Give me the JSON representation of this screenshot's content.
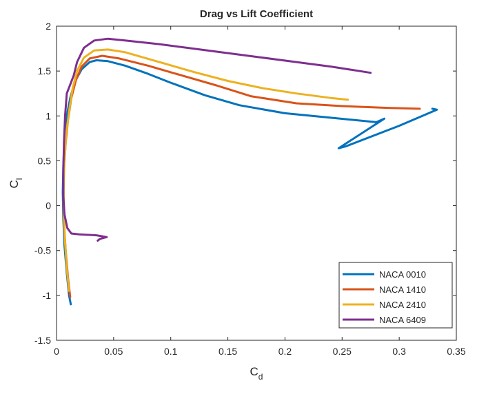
{
  "chart_data": {
    "type": "line",
    "title": "Drag vs Lift Coefficient",
    "xlabel": {
      "main": "C",
      "sub": "d"
    },
    "ylabel": {
      "main": "C",
      "sub": "l"
    },
    "xlim": [
      0,
      0.35
    ],
    "ylim": [
      -1.5,
      2
    ],
    "xticks": [
      0,
      0.05,
      0.1,
      0.15,
      0.2,
      0.25,
      0.3,
      0.35
    ],
    "xtick_labels": [
      "0",
      "0.05",
      "0.1",
      "0.15",
      "0.2",
      "0.25",
      "0.3",
      "0.35"
    ],
    "yticks": [
      -1.5,
      -1,
      -0.5,
      0,
      0.5,
      1,
      1.5,
      2
    ],
    "ytick_labels": [
      "-1.5",
      "-1",
      "-0.5",
      "0",
      "0.5",
      "1",
      "1.5",
      "2"
    ],
    "grid": false,
    "legend_position": "bottom-right",
    "series": [
      {
        "name": "NACA 0010",
        "color": "#0072BD",
        "points": [
          [
            0.0125,
            -1.1
          ],
          [
            0.011,
            -1.0
          ],
          [
            0.009,
            -0.75
          ],
          [
            0.007,
            -0.45
          ],
          [
            0.006,
            -0.15
          ],
          [
            0.0055,
            0.15
          ],
          [
            0.006,
            0.45
          ],
          [
            0.007,
            0.75
          ],
          [
            0.009,
            1.0
          ],
          [
            0.012,
            1.2
          ],
          [
            0.016,
            1.38
          ],
          [
            0.022,
            1.52
          ],
          [
            0.029,
            1.6
          ],
          [
            0.035,
            1.62
          ],
          [
            0.045,
            1.61
          ],
          [
            0.06,
            1.56
          ],
          [
            0.08,
            1.47
          ],
          [
            0.1,
            1.37
          ],
          [
            0.13,
            1.23
          ],
          [
            0.16,
            1.12
          ],
          [
            0.2,
            1.03
          ],
          [
            0.24,
            0.98
          ],
          [
            0.28,
            0.93
          ],
          [
            0.287,
            0.97
          ],
          [
            0.247,
            0.64
          ],
          [
            0.253,
            0.66
          ],
          [
            0.3,
            0.89
          ],
          [
            0.333,
            1.07
          ],
          [
            0.329,
            1.08
          ]
        ]
      },
      {
        "name": "NACA 1410",
        "color": "#D95319",
        "points": [
          [
            0.012,
            -1.02
          ],
          [
            0.01,
            -0.8
          ],
          [
            0.008,
            -0.5
          ],
          [
            0.0065,
            -0.2
          ],
          [
            0.006,
            0.1
          ],
          [
            0.0065,
            0.4
          ],
          [
            0.008,
            0.7
          ],
          [
            0.01,
            0.95
          ],
          [
            0.013,
            1.2
          ],
          [
            0.017,
            1.4
          ],
          [
            0.022,
            1.55
          ],
          [
            0.029,
            1.64
          ],
          [
            0.04,
            1.67
          ],
          [
            0.055,
            1.64
          ],
          [
            0.08,
            1.56
          ],
          [
            0.11,
            1.45
          ],
          [
            0.14,
            1.34
          ],
          [
            0.17,
            1.22
          ],
          [
            0.21,
            1.14
          ],
          [
            0.25,
            1.11
          ],
          [
            0.29,
            1.09
          ],
          [
            0.318,
            1.08
          ]
        ]
      },
      {
        "name": "NACA 2410",
        "color": "#EDB120",
        "points": [
          [
            0.011,
            -0.95
          ],
          [
            0.009,
            -0.7
          ],
          [
            0.0075,
            -0.4
          ],
          [
            0.0065,
            -0.1
          ],
          [
            0.0062,
            0.2
          ],
          [
            0.007,
            0.5
          ],
          [
            0.0085,
            0.8
          ],
          [
            0.011,
            1.05
          ],
          [
            0.014,
            1.3
          ],
          [
            0.018,
            1.5
          ],
          [
            0.024,
            1.65
          ],
          [
            0.033,
            1.73
          ],
          [
            0.045,
            1.74
          ],
          [
            0.06,
            1.71
          ],
          [
            0.09,
            1.6
          ],
          [
            0.12,
            1.49
          ],
          [
            0.15,
            1.39
          ],
          [
            0.18,
            1.31
          ],
          [
            0.21,
            1.25
          ],
          [
            0.24,
            1.2
          ],
          [
            0.255,
            1.18
          ]
        ]
      },
      {
        "name": "NACA 6409",
        "color": "#7E2F8E",
        "points": [
          [
            0.036,
            -0.39
          ],
          [
            0.038,
            -0.37
          ],
          [
            0.044,
            -0.35
          ],
          [
            0.035,
            -0.33
          ],
          [
            0.02,
            -0.32
          ],
          [
            0.013,
            -0.31
          ],
          [
            0.0095,
            -0.25
          ],
          [
            0.007,
            -0.1
          ],
          [
            0.006,
            0.1
          ],
          [
            0.006,
            0.4
          ],
          [
            0.0065,
            0.7
          ],
          [
            0.0075,
            1.0
          ],
          [
            0.009,
            1.25
          ],
          [
            0.012,
            1.35
          ],
          [
            0.015,
            1.45
          ],
          [
            0.018,
            1.6
          ],
          [
            0.024,
            1.76
          ],
          [
            0.033,
            1.84
          ],
          [
            0.045,
            1.86
          ],
          [
            0.06,
            1.84
          ],
          [
            0.09,
            1.8
          ],
          [
            0.12,
            1.75
          ],
          [
            0.15,
            1.7
          ],
          [
            0.18,
            1.65
          ],
          [
            0.21,
            1.6
          ],
          [
            0.24,
            1.55
          ],
          [
            0.275,
            1.48
          ]
        ]
      }
    ]
  }
}
